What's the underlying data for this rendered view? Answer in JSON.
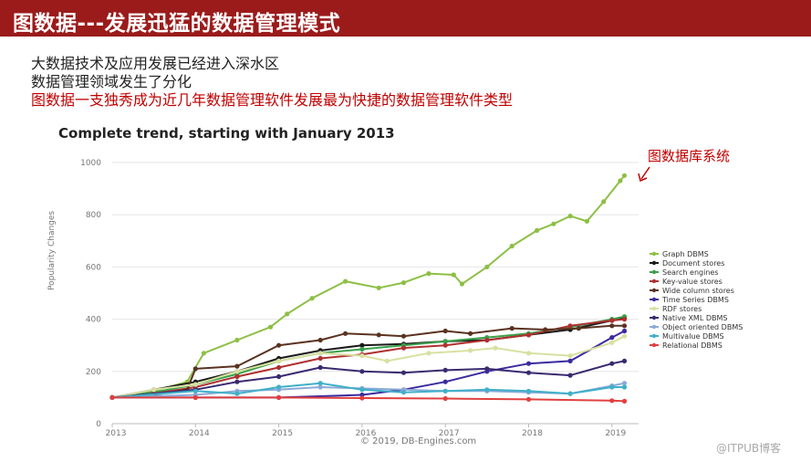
{
  "header": {
    "title": "图数据---发展迅猛的数据管理模式"
  },
  "bullets": [
    {
      "text": "大数据技术及应用发展已经进入深水区",
      "color": "#222222"
    },
    {
      "text": "数据管理领域发生了分化",
      "color": "#222222"
    },
    {
      "text": "图数据一支独秀成为近几年数据管理软件发展最为快捷的数据管理软件类型",
      "color": "#c00000"
    }
  ],
  "annotation": {
    "text": "图数据库系统",
    "color": "#c00000"
  },
  "copyright": "© 2019, DB-Engines.com",
  "watermark": "@ITPUB博客",
  "chart_data": {
    "type": "line",
    "title": "Complete trend, starting with January 2013",
    "ylabel": "Popularity Changes",
    "xlabel": "",
    "xticks": [
      "2013",
      "2014",
      "2015",
      "2016",
      "2017",
      "2018",
      "2019"
    ],
    "xlim": [
      2013.0,
      2019.25
    ],
    "ylim": [
      0,
      1000
    ],
    "yticks": [
      0,
      200,
      400,
      600,
      800,
      1000
    ],
    "grid": true,
    "legend": "right",
    "series": [
      {
        "name": "Graph DBMS",
        "color": "#8dbf45",
        "points": [
          [
            2013,
            100
          ],
          [
            2013.5,
            125
          ],
          [
            2013.9,
            160
          ],
          [
            2014.1,
            270
          ],
          [
            2014.5,
            320
          ],
          [
            2014.9,
            370
          ],
          [
            2015.1,
            420
          ],
          [
            2015.4,
            480
          ],
          [
            2015.8,
            545
          ],
          [
            2016.2,
            520
          ],
          [
            2016.5,
            540
          ],
          [
            2016.8,
            575
          ],
          [
            2017.1,
            570
          ],
          [
            2017.2,
            535
          ],
          [
            2017.5,
            600
          ],
          [
            2017.8,
            680
          ],
          [
            2018.1,
            740
          ],
          [
            2018.3,
            765
          ],
          [
            2018.5,
            795
          ],
          [
            2018.7,
            775
          ],
          [
            2018.9,
            850
          ],
          [
            2019.1,
            930
          ],
          [
            2019.15,
            950
          ]
        ]
      },
      {
        "name": "Document stores",
        "color": "#1a1a1a",
        "points": [
          [
            2013,
            100
          ],
          [
            2013.5,
            130
          ],
          [
            2014,
            160
          ],
          [
            2014.5,
            200
          ],
          [
            2015,
            250
          ],
          [
            2015.5,
            280
          ],
          [
            2016,
            300
          ],
          [
            2016.5,
            305
          ],
          [
            2017,
            315
          ],
          [
            2017.5,
            320
          ],
          [
            2018,
            340
          ],
          [
            2018.5,
            360
          ],
          [
            2019,
            395
          ],
          [
            2019.15,
            405
          ]
        ]
      },
      {
        "name": "Search engines",
        "color": "#3aa04a",
        "points": [
          [
            2013,
            100
          ],
          [
            2013.5,
            120
          ],
          [
            2014,
            150
          ],
          [
            2014.5,
            190
          ],
          [
            2015,
            240
          ],
          [
            2015.5,
            270
          ],
          [
            2016,
            285
          ],
          [
            2016.5,
            300
          ],
          [
            2017,
            315
          ],
          [
            2017.5,
            330
          ],
          [
            2018,
            345
          ],
          [
            2018.5,
            370
          ],
          [
            2019,
            400
          ],
          [
            2019.15,
            410
          ]
        ]
      },
      {
        "name": "Key-value stores",
        "color": "#b03030",
        "points": [
          [
            2013,
            100
          ],
          [
            2013.5,
            115
          ],
          [
            2014,
            140
          ],
          [
            2014.5,
            180
          ],
          [
            2015,
            215
          ],
          [
            2015.5,
            250
          ],
          [
            2016,
            265
          ],
          [
            2016.5,
            290
          ],
          [
            2017,
            300
          ],
          [
            2017.5,
            320
          ],
          [
            2018,
            340
          ],
          [
            2018.5,
            375
          ],
          [
            2019,
            395
          ],
          [
            2019.15,
            400
          ]
        ]
      },
      {
        "name": "Wide column stores",
        "color": "#5a3220",
        "points": [
          [
            2013,
            100
          ],
          [
            2013.5,
            110
          ],
          [
            2013.9,
            130
          ],
          [
            2014,
            210
          ],
          [
            2014.5,
            220
          ],
          [
            2015,
            300
          ],
          [
            2015.5,
            320
          ],
          [
            2015.8,
            345
          ],
          [
            2016.2,
            340
          ],
          [
            2016.5,
            335
          ],
          [
            2017,
            355
          ],
          [
            2017.3,
            345
          ],
          [
            2017.8,
            365
          ],
          [
            2018.2,
            360
          ],
          [
            2018.6,
            365
          ],
          [
            2019,
            375
          ],
          [
            2019.15,
            375
          ]
        ]
      },
      {
        "name": "Time Series DBMS",
        "color": "#3a2aa0",
        "points": [
          [
            2013,
            100
          ],
          [
            2014,
            100
          ],
          [
            2015,
            100
          ],
          [
            2016,
            110
          ],
          [
            2016.5,
            130
          ],
          [
            2017,
            160
          ],
          [
            2017.5,
            200
          ],
          [
            2018,
            230
          ],
          [
            2018.5,
            240
          ],
          [
            2019,
            330
          ],
          [
            2019.15,
            355
          ]
        ]
      },
      {
        "name": "RDF stores",
        "color": "#d8e0a0",
        "points": [
          [
            2013,
            100
          ],
          [
            2013.5,
            130
          ],
          [
            2014,
            150
          ],
          [
            2014.5,
            200
          ],
          [
            2015,
            240
          ],
          [
            2015.5,
            270
          ],
          [
            2016,
            260
          ],
          [
            2016.3,
            240
          ],
          [
            2016.8,
            270
          ],
          [
            2017.3,
            280
          ],
          [
            2017.6,
            290
          ],
          [
            2018,
            270
          ],
          [
            2018.5,
            260
          ],
          [
            2019,
            310
          ],
          [
            2019.15,
            335
          ]
        ]
      },
      {
        "name": "Native XML DBMS",
        "color": "#3a2a70",
        "points": [
          [
            2013,
            100
          ],
          [
            2014,
            130
          ],
          [
            2014.5,
            160
          ],
          [
            2015,
            180
          ],
          [
            2015.5,
            215
          ],
          [
            2016,
            200
          ],
          [
            2016.5,
            195
          ],
          [
            2017,
            205
          ],
          [
            2017.5,
            210
          ],
          [
            2018,
            195
          ],
          [
            2018.5,
            185
          ],
          [
            2019,
            230
          ],
          [
            2019.15,
            240
          ]
        ]
      },
      {
        "name": "Object oriented DBMS",
        "color": "#8aaad8",
        "points": [
          [
            2013,
            100
          ],
          [
            2014,
            110
          ],
          [
            2014.5,
            125
          ],
          [
            2015,
            130
          ],
          [
            2015.5,
            140
          ],
          [
            2016,
            135
          ],
          [
            2016.5,
            130
          ],
          [
            2017,
            125
          ],
          [
            2017.5,
            125
          ],
          [
            2018,
            120
          ],
          [
            2018.5,
            115
          ],
          [
            2019,
            145
          ],
          [
            2019.15,
            155
          ]
        ]
      },
      {
        "name": "Multivalue DBMS",
        "color": "#40b0c8",
        "points": [
          [
            2013,
            100
          ],
          [
            2014,
            125
          ],
          [
            2014.5,
            115
          ],
          [
            2015,
            140
          ],
          [
            2015.5,
            155
          ],
          [
            2016,
            130
          ],
          [
            2016.5,
            120
          ],
          [
            2017,
            125
          ],
          [
            2017.5,
            130
          ],
          [
            2018,
            125
          ],
          [
            2018.5,
            115
          ],
          [
            2019,
            140
          ],
          [
            2019.15,
            140
          ]
        ]
      },
      {
        "name": "Relational DBMS",
        "color": "#e04040",
        "points": [
          [
            2013,
            100
          ],
          [
            2014,
            100
          ],
          [
            2015,
            100
          ],
          [
            2016,
            98
          ],
          [
            2017,
            96
          ],
          [
            2018,
            93
          ],
          [
            2019,
            88
          ],
          [
            2019.15,
            86
          ]
        ]
      }
    ]
  }
}
